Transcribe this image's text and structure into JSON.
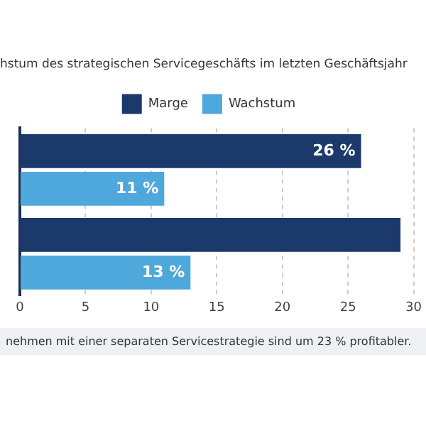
{
  "chart_data": {
    "type": "bar",
    "orientation": "horizontal",
    "title": "hstum des strategischen Servicegeschäfts im letzten Geschäftsjahr",
    "categories": [
      null,
      null
    ],
    "series": [
      {
        "name": "Marge",
        "color": "#1b3a6b",
        "values": [
          26,
          29
        ],
        "value_labels": [
          "26 %",
          null
        ]
      },
      {
        "name": "Wachstum",
        "color": "#4fa8dc",
        "values": [
          11,
          13
        ],
        "value_labels": [
          "11 %",
          "13 %"
        ]
      }
    ],
    "xlim": [
      0,
      30
    ],
    "xticks": [
      0,
      5,
      10,
      15,
      20,
      25,
      30
    ],
    "grid": "x",
    "legend": "top",
    "annotations": [
      "nehmen mit einer separaten Servicestrategie sind um 23 % profitabler."
    ]
  }
}
